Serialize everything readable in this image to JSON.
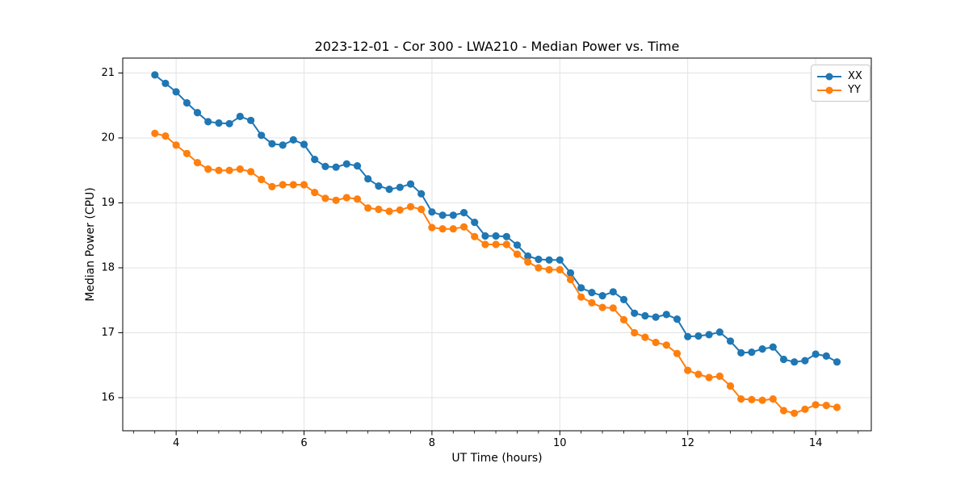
{
  "chart_data": {
    "type": "line",
    "title": "2023-12-01 - Cor 300 - LWA210 - Median Power vs. Time",
    "xlabel": "UT Time (hours)",
    "ylabel": "Median Power (CPU)",
    "xlim": [
      3.165,
      14.87
    ],
    "ylim": [
      15.49,
      21.23
    ],
    "xticks": [
      4,
      6,
      8,
      10,
      12,
      14
    ],
    "yticks": [
      16,
      17,
      18,
      19,
      20,
      21
    ],
    "x_minor_tick_step": 0.3333,
    "grid": true,
    "legend_position": "upper right",
    "background": "#ffffff",
    "grid_color": "#e3e3e3",
    "x": [
      3.667,
      3.833,
      4.0,
      4.167,
      4.333,
      4.5,
      4.667,
      4.833,
      5.0,
      5.167,
      5.333,
      5.5,
      5.667,
      5.833,
      6.0,
      6.167,
      6.333,
      6.5,
      6.667,
      6.833,
      7.0,
      7.167,
      7.333,
      7.5,
      7.667,
      7.833,
      8.0,
      8.167,
      8.333,
      8.5,
      8.667,
      8.833,
      9.0,
      9.167,
      9.333,
      9.5,
      9.667,
      9.833,
      10.0,
      10.167,
      10.333,
      10.5,
      10.667,
      10.833,
      11.0,
      11.167,
      11.333,
      11.5,
      11.667,
      11.833,
      12.0,
      12.167,
      12.333,
      12.5,
      12.667,
      12.833,
      13.0,
      13.167,
      13.333,
      13.5,
      13.667,
      13.833,
      14.0,
      14.167,
      14.333
    ],
    "series": [
      {
        "name": "XX",
        "color": "#1f77b4",
        "values": [
          20.97,
          20.84,
          20.71,
          20.54,
          20.39,
          20.25,
          20.23,
          20.22,
          20.33,
          20.27,
          20.04,
          19.91,
          19.89,
          19.97,
          19.9,
          19.67,
          19.56,
          19.55,
          19.6,
          19.57,
          19.37,
          19.26,
          19.21,
          19.24,
          19.29,
          19.14,
          18.86,
          18.81,
          18.81,
          18.85,
          18.7,
          18.49,
          18.49,
          18.48,
          18.35,
          18.18,
          18.13,
          18.12,
          18.12,
          17.92,
          17.69,
          17.62,
          17.57,
          17.63,
          17.51,
          17.3,
          17.26,
          17.24,
          17.28,
          17.21,
          16.94,
          16.95,
          16.97,
          17.01,
          16.87,
          16.69,
          16.7,
          16.75,
          16.78,
          16.59,
          16.55,
          16.57,
          16.67,
          16.64,
          16.55
        ]
      },
      {
        "name": "YY",
        "color": "#ff7f0e",
        "values": [
          20.07,
          20.03,
          19.89,
          19.76,
          19.62,
          19.52,
          19.5,
          19.5,
          19.52,
          19.48,
          19.36,
          19.25,
          19.28,
          19.28,
          19.28,
          19.16,
          19.07,
          19.04,
          19.08,
          19.06,
          18.92,
          18.9,
          18.87,
          18.89,
          18.94,
          18.9,
          18.62,
          18.6,
          18.6,
          18.63,
          18.48,
          18.36,
          18.36,
          18.36,
          18.21,
          18.09,
          18.0,
          17.97,
          17.97,
          17.82,
          17.55,
          17.46,
          17.39,
          17.38,
          17.2,
          17.0,
          16.93,
          16.85,
          16.81,
          16.68,
          16.42,
          16.36,
          16.31,
          16.33,
          16.18,
          15.98,
          15.97,
          15.96,
          15.98,
          15.8,
          15.76,
          15.82,
          15.89,
          15.88,
          15.85
        ]
      }
    ]
  }
}
